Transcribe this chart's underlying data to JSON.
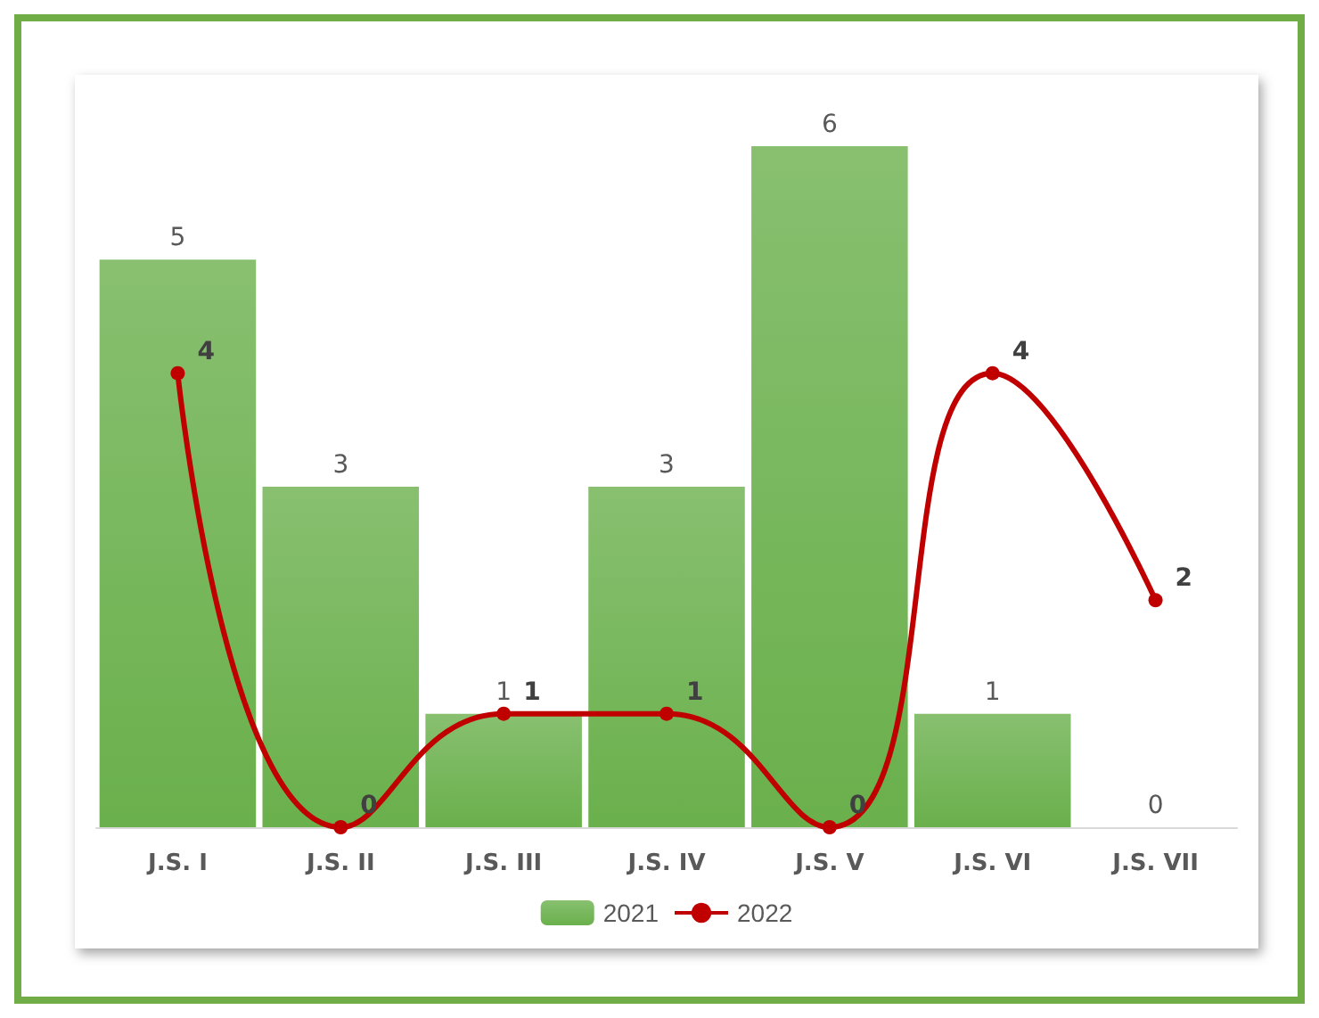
{
  "chart_data": {
    "type": "bar",
    "categories": [
      "J.S. I",
      "J.S. II",
      "J.S. III",
      "J.S. IV",
      "J.S. V",
      "J.S. VI",
      "J.S. VII"
    ],
    "series": [
      {
        "name": "2021",
        "color": "#6ab04c",
        "values": [
          5,
          3,
          1,
          3,
          6,
          1,
          0
        ]
      },
      {
        "name": "2022",
        "type": "line",
        "color": "#c00000",
        "values": [
          4,
          0,
          1,
          1,
          0,
          4,
          2
        ]
      }
    ],
    "data_labels": true,
    "legend": "bottom",
    "marker": "circle",
    "line_style": "solid"
  }
}
